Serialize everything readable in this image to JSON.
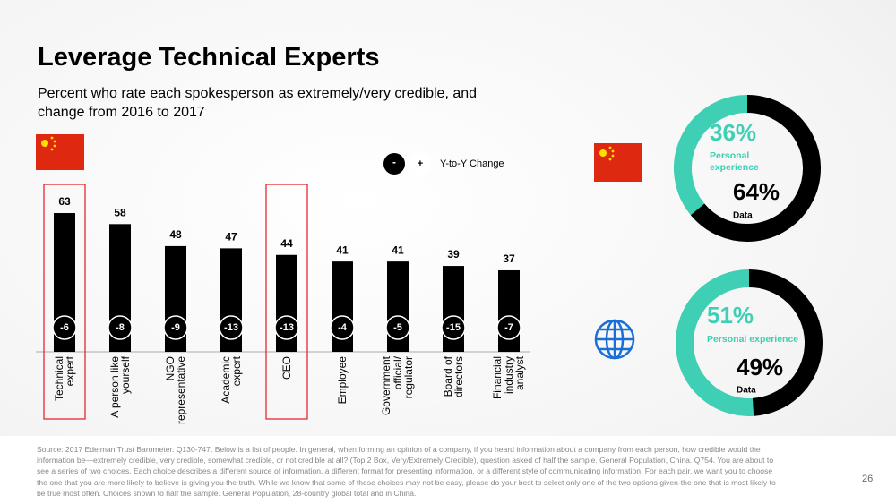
{
  "title": "Leverage Technical Experts",
  "subtitle": "Percent who rate each spokesperson as extremely/very credible, and change from 2016 to 2017",
  "chart_data": [
    {
      "type": "bar",
      "categories": [
        "Technical expert",
        "A person like yourself",
        "NGO representative",
        "Academic expert",
        "CEO",
        "Employee",
        "Government official/ regulator",
        "Board of directors",
        "Financial industry analyst"
      ],
      "values": [
        63,
        58,
        48,
        47,
        44,
        41,
        41,
        39,
        37
      ],
      "color": "#000000",
      "ylim": [
        0,
        70
      ],
      "change": {
        "name": "Y-to-Y Change",
        "legend_labels": [
          "-",
          "+"
        ],
        "values": [
          -6,
          -8,
          -9,
          -13,
          -13,
          -4,
          -5,
          -15,
          -7
        ]
      },
      "highlight_indices": [
        0,
        4
      ],
      "highlight_color": "#e0191f"
    },
    {
      "type": "donut",
      "direction": "counterclockwise",
      "labels": [
        "Personal experience",
        "Data"
      ],
      "values": [
        36,
        64
      ],
      "value_labels": [
        "36%",
        "64%"
      ],
      "colors": [
        "#3fcfb4",
        "#000000"
      ]
    },
    {
      "type": "donut",
      "direction": "counterclockwise",
      "labels": [
        "Personal experience",
        "Data"
      ],
      "values": [
        51,
        49
      ],
      "value_labels": [
        "51%",
        "49%"
      ],
      "colors": [
        "#3fcfb4",
        "#000000"
      ]
    }
  ],
  "source": "Source: 2017 Edelman Trust Barometer. Q130-747. Below is a list of people. In general, when forming an opinion of a company, if you heard information about a company from each person, how credible would the information be—extremely credible, very credible, somewhat credible, or not credible at all? (Top 2 Box, Very/Extremely Credible), question asked of half the sample. General Population, China. Q754. You are about to see a series of two choices. Each choice describes a different source of information, a different format for presenting information, or a different style of communicating information. For each pair, we want you to choose the one that you are more likely to believe is giving you the truth. While we know that some of these choices may not be easy, please do your best to select only one of the two options given-the one that is most likely to be true most often. Choices shown to half the sample. General Population, 28-country global total and in China.",
  "page_number": "26"
}
